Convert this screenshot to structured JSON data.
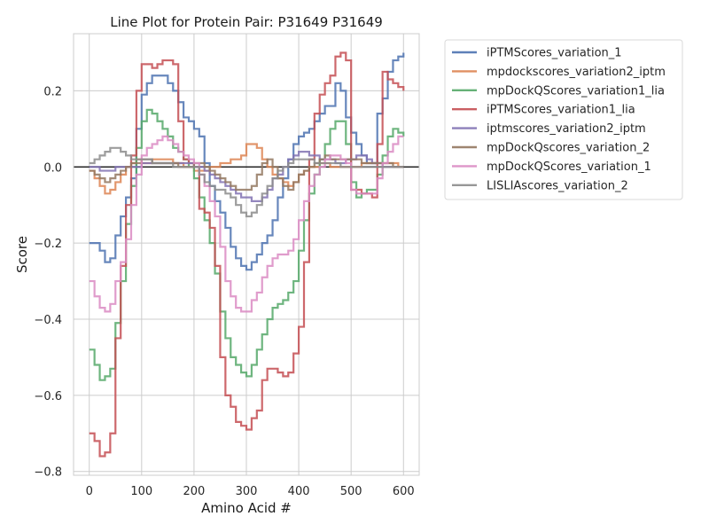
{
  "chart_data": {
    "type": "line",
    "title": "Line Plot for Protein Pair: P31649 P31649",
    "xlabel": "Amino Acid #",
    "ylabel": "Score",
    "xlim": [
      -30,
      630
    ],
    "ylim": [
      -0.81,
      0.35
    ],
    "xticks": [
      0,
      100,
      200,
      300,
      400,
      500,
      600
    ],
    "yticks": [
      -0.8,
      -0.6,
      -0.4,
      -0.2,
      0.0,
      0.2
    ],
    "xtick_labels": [
      "0",
      "100",
      "200",
      "300",
      "400",
      "500",
      "600"
    ],
    "ytick_labels": [
      "−0.8",
      "−0.6",
      "−0.4",
      "−0.2",
      "0.0",
      "0.2"
    ],
    "grid": true,
    "hline": 0.0,
    "legend_position": "outside-top-right",
    "series": [
      {
        "name": "iPTMScores_variation_1",
        "color": "#4c72b0",
        "x": [
          0,
          10,
          20,
          30,
          40,
          50,
          60,
          70,
          80,
          90,
          100,
          110,
          120,
          130,
          140,
          150,
          160,
          170,
          180,
          190,
          200,
          210,
          220,
          230,
          240,
          250,
          260,
          270,
          280,
          290,
          300,
          310,
          320,
          330,
          340,
          350,
          360,
          370,
          380,
          390,
          400,
          410,
          420,
          430,
          440,
          450,
          460,
          470,
          480,
          490,
          500,
          510,
          520,
          530,
          540,
          550,
          560,
          570,
          580,
          590,
          600
        ],
        "y": [
          -0.2,
          -0.2,
          -0.22,
          -0.25,
          -0.24,
          -0.18,
          -0.13,
          -0.08,
          -0.03,
          0.1,
          0.19,
          0.22,
          0.24,
          0.24,
          0.24,
          0.22,
          0.2,
          0.17,
          0.13,
          0.12,
          0.1,
          0.08,
          0.01,
          -0.05,
          -0.09,
          -0.12,
          -0.16,
          -0.21,
          -0.24,
          -0.26,
          -0.27,
          -0.25,
          -0.23,
          -0.2,
          -0.18,
          -0.14,
          -0.08,
          -0.03,
          0.02,
          0.06,
          0.08,
          0.09,
          0.1,
          0.12,
          0.14,
          0.16,
          0.16,
          0.22,
          0.2,
          0.13,
          0.09,
          0.06,
          0.03,
          0.01,
          0.01,
          0.14,
          0.18,
          0.25,
          0.28,
          0.29,
          0.3
        ]
      },
      {
        "name": "mpdockscores_variation2_iptm",
        "color": "#dd8452",
        "x": [
          0,
          10,
          20,
          30,
          40,
          50,
          60,
          70,
          80,
          90,
          100,
          110,
          120,
          130,
          140,
          150,
          160,
          170,
          180,
          190,
          200,
          210,
          220,
          230,
          240,
          250,
          260,
          270,
          280,
          290,
          300,
          310,
          320,
          330,
          340,
          350,
          360,
          370,
          380,
          390,
          400,
          410,
          420,
          430,
          440,
          450,
          460,
          470,
          480,
          490,
          500,
          510,
          520,
          530,
          540,
          550,
          560,
          570,
          580,
          590,
          600
        ],
        "y": [
          -0.01,
          -0.03,
          -0.05,
          -0.07,
          -0.06,
          -0.04,
          -0.02,
          0.0,
          0.01,
          0.02,
          0.01,
          0.01,
          0.02,
          0.02,
          0.02,
          0.02,
          0.01,
          0.01,
          0.0,
          0.0,
          -0.01,
          -0.01,
          -0.01,
          0.0,
          0.0,
          0.01,
          0.01,
          0.02,
          0.02,
          0.03,
          0.06,
          0.06,
          0.05,
          0.02,
          0.0,
          -0.02,
          -0.03,
          -0.04,
          -0.05,
          -0.04,
          -0.02,
          -0.01,
          0.0,
          0.0,
          0.01,
          0.01,
          0.0,
          0.0,
          0.0,
          0.0,
          0.0,
          0.0,
          0.01,
          0.01,
          0.01,
          0.01,
          0.01,
          0.01,
          0.01,
          0.0,
          0.0
        ]
      },
      {
        "name": "mpDockQScores_variation1_lia",
        "color": "#55a868",
        "x": [
          0,
          10,
          20,
          30,
          40,
          50,
          60,
          70,
          80,
          90,
          100,
          110,
          120,
          130,
          140,
          150,
          160,
          170,
          180,
          190,
          200,
          210,
          220,
          230,
          240,
          250,
          260,
          270,
          280,
          290,
          300,
          310,
          320,
          330,
          340,
          350,
          360,
          370,
          380,
          390,
          400,
          410,
          420,
          430,
          440,
          450,
          460,
          470,
          480,
          490,
          500,
          510,
          520,
          530,
          540,
          550,
          560,
          570,
          580,
          590,
          600
        ],
        "y": [
          -0.48,
          -0.52,
          -0.56,
          -0.55,
          -0.53,
          -0.41,
          -0.3,
          -0.15,
          -0.05,
          0.05,
          0.12,
          0.15,
          0.14,
          0.12,
          0.1,
          0.08,
          0.05,
          0.04,
          0.02,
          0.0,
          -0.03,
          -0.08,
          -0.14,
          -0.2,
          -0.28,
          -0.38,
          -0.45,
          -0.5,
          -0.52,
          -0.54,
          -0.55,
          -0.52,
          -0.48,
          -0.44,
          -0.4,
          -0.37,
          -0.36,
          -0.35,
          -0.33,
          -0.3,
          -0.22,
          -0.14,
          -0.07,
          -0.02,
          0.02,
          0.06,
          0.1,
          0.12,
          0.12,
          0.06,
          -0.04,
          -0.08,
          -0.07,
          -0.06,
          -0.06,
          -0.02,
          0.03,
          0.08,
          0.1,
          0.09,
          0.08
        ]
      },
      {
        "name": "iPTMScores_variation1_lia",
        "color": "#c44e52",
        "x": [
          0,
          10,
          20,
          30,
          40,
          50,
          60,
          70,
          80,
          90,
          100,
          110,
          120,
          130,
          140,
          150,
          160,
          170,
          180,
          190,
          200,
          210,
          220,
          230,
          240,
          250,
          260,
          270,
          280,
          290,
          300,
          310,
          320,
          330,
          340,
          350,
          360,
          370,
          380,
          390,
          400,
          410,
          420,
          430,
          440,
          450,
          460,
          470,
          480,
          490,
          500,
          510,
          520,
          530,
          540,
          550,
          560,
          570,
          580,
          590,
          600
        ],
        "y": [
          -0.7,
          -0.72,
          -0.76,
          -0.75,
          -0.7,
          -0.45,
          -0.26,
          -0.1,
          0.03,
          0.2,
          0.27,
          0.27,
          0.26,
          0.27,
          0.28,
          0.28,
          0.27,
          0.12,
          0.02,
          0.01,
          0.0,
          -0.11,
          -0.12,
          -0.16,
          -0.26,
          -0.5,
          -0.6,
          -0.63,
          -0.67,
          -0.68,
          -0.69,
          -0.66,
          -0.64,
          -0.56,
          -0.53,
          -0.53,
          -0.54,
          -0.55,
          -0.54,
          -0.49,
          -0.42,
          -0.25,
          0.02,
          0.14,
          0.19,
          0.22,
          0.24,
          0.29,
          0.3,
          0.28,
          -0.06,
          -0.06,
          -0.07,
          -0.07,
          -0.08,
          0.06,
          0.25,
          0.23,
          0.22,
          0.21,
          0.2
        ]
      },
      {
        "name": "iptmscores_variation2_iptm",
        "color": "#8172b3",
        "x": [
          0,
          10,
          20,
          30,
          40,
          50,
          60,
          70,
          80,
          90,
          100,
          110,
          120,
          130,
          140,
          150,
          160,
          170,
          180,
          190,
          200,
          210,
          220,
          230,
          240,
          250,
          260,
          270,
          280,
          290,
          300,
          310,
          320,
          330,
          340,
          350,
          360,
          370,
          380,
          390,
          400,
          410,
          420,
          430,
          440,
          450,
          460,
          470,
          480,
          490,
          500,
          510,
          520,
          530,
          540,
          550,
          560,
          570,
          580,
          590,
          600
        ],
        "y": [
          0.0,
          0.0,
          -0.01,
          -0.01,
          -0.01,
          0.0,
          0.0,
          0.0,
          0.0,
          0.0,
          0.01,
          0.01,
          0.01,
          0.01,
          0.01,
          0.01,
          0.01,
          0.01,
          0.01,
          0.01,
          0.0,
          0.0,
          -0.01,
          -0.02,
          -0.03,
          -0.04,
          -0.05,
          -0.06,
          -0.07,
          -0.08,
          -0.08,
          -0.09,
          -0.09,
          -0.08,
          -0.06,
          -0.03,
          -0.02,
          0.0,
          0.02,
          0.03,
          0.04,
          0.04,
          0.03,
          0.03,
          0.02,
          0.02,
          0.02,
          0.01,
          0.01,
          0.02,
          0.02,
          0.03,
          0.03,
          0.02,
          0.01,
          0.01,
          0.0,
          0.0,
          0.0,
          0.0,
          0.0
        ]
      },
      {
        "name": "mpDockQscores_variation_2",
        "color": "#937860",
        "x": [
          0,
          10,
          20,
          30,
          40,
          50,
          60,
          70,
          80,
          90,
          100,
          110,
          120,
          130,
          140,
          150,
          160,
          170,
          180,
          190,
          200,
          210,
          220,
          230,
          240,
          250,
          260,
          270,
          280,
          290,
          300,
          310,
          320,
          330,
          340,
          350,
          360,
          370,
          380,
          390,
          400,
          410,
          420,
          430,
          440,
          450,
          460,
          470,
          480,
          490,
          500,
          510,
          520,
          530,
          540,
          550,
          560,
          570,
          580,
          590,
          600
        ],
        "y": [
          -0.01,
          -0.02,
          -0.03,
          -0.04,
          -0.03,
          -0.02,
          -0.01,
          0.0,
          0.01,
          0.01,
          0.02,
          0.02,
          0.01,
          0.01,
          0.01,
          0.01,
          0.01,
          0.0,
          0.0,
          0.0,
          0.01,
          0.01,
          0.0,
          -0.01,
          -0.02,
          -0.03,
          -0.04,
          -0.05,
          -0.06,
          -0.06,
          -0.06,
          -0.05,
          -0.02,
          0.01,
          0.02,
          0.0,
          -0.03,
          -0.05,
          -0.06,
          -0.04,
          -0.02,
          -0.01,
          0.0,
          0.01,
          0.02,
          0.03,
          0.02,
          0.02,
          0.02,
          0.02,
          0.02,
          0.02,
          0.01,
          0.01,
          0.01,
          0.01,
          0.01,
          0.01,
          0.0,
          0.0,
          0.0
        ]
      },
      {
        "name": "mpDockQScores_variation_1",
        "color": "#da8bc3",
        "x": [
          0,
          10,
          20,
          30,
          40,
          50,
          60,
          70,
          80,
          90,
          100,
          110,
          120,
          130,
          140,
          150,
          160,
          170,
          180,
          190,
          200,
          210,
          220,
          230,
          240,
          250,
          260,
          270,
          280,
          290,
          300,
          310,
          320,
          330,
          340,
          350,
          360,
          370,
          380,
          390,
          400,
          410,
          420,
          430,
          440,
          450,
          460,
          470,
          480,
          490,
          500,
          510,
          520,
          530,
          540,
          550,
          560,
          570,
          580,
          590,
          600
        ],
        "y": [
          -0.3,
          -0.34,
          -0.37,
          -0.38,
          -0.36,
          -0.3,
          -0.25,
          -0.19,
          -0.1,
          -0.02,
          0.03,
          0.05,
          0.06,
          0.07,
          0.08,
          0.07,
          0.06,
          0.04,
          0.03,
          0.02,
          0.01,
          -0.02,
          -0.05,
          -0.09,
          -0.13,
          -0.21,
          -0.3,
          -0.34,
          -0.37,
          -0.38,
          -0.38,
          -0.35,
          -0.33,
          -0.29,
          -0.26,
          -0.24,
          -0.23,
          -0.23,
          -0.22,
          -0.19,
          -0.14,
          -0.09,
          -0.05,
          -0.02,
          0.0,
          0.02,
          0.03,
          0.03,
          0.02,
          0.01,
          -0.06,
          -0.07,
          -0.07,
          -0.07,
          -0.07,
          -0.03,
          0.01,
          0.04,
          0.06,
          0.08,
          0.08
        ]
      },
      {
        "name": "LISLIAscores_variation_2",
        "color": "#8c8c8c",
        "x": [
          0,
          10,
          20,
          30,
          40,
          50,
          60,
          70,
          80,
          90,
          100,
          110,
          120,
          130,
          140,
          150,
          160,
          170,
          180,
          190,
          200,
          210,
          220,
          230,
          240,
          250,
          260,
          270,
          280,
          290,
          300,
          310,
          320,
          330,
          340,
          350,
          360,
          370,
          380,
          390,
          400,
          410,
          420,
          430,
          440,
          450,
          460,
          470,
          480,
          490,
          500,
          510,
          520,
          530,
          540,
          550,
          560,
          570,
          580,
          590,
          600
        ],
        "y": [
          0.01,
          0.02,
          0.03,
          0.04,
          0.05,
          0.05,
          0.04,
          0.03,
          0.02,
          0.02,
          0.02,
          0.02,
          0.01,
          0.01,
          0.01,
          0.01,
          0.0,
          0.0,
          0.0,
          0.0,
          0.0,
          -0.02,
          -0.04,
          -0.05,
          -0.06,
          -0.06,
          -0.07,
          -0.08,
          -0.1,
          -0.12,
          -0.13,
          -0.12,
          -0.1,
          -0.07,
          -0.05,
          -0.03,
          -0.01,
          0.0,
          0.01,
          0.02,
          0.02,
          0.02,
          0.02,
          0.01,
          0.01,
          0.01,
          0.01,
          0.01,
          0.0,
          0.0,
          0.0,
          0.0,
          0.0,
          0.0,
          0.0,
          0.0,
          0.0,
          0.0,
          0.0,
          0.0,
          0.0
        ]
      }
    ]
  }
}
